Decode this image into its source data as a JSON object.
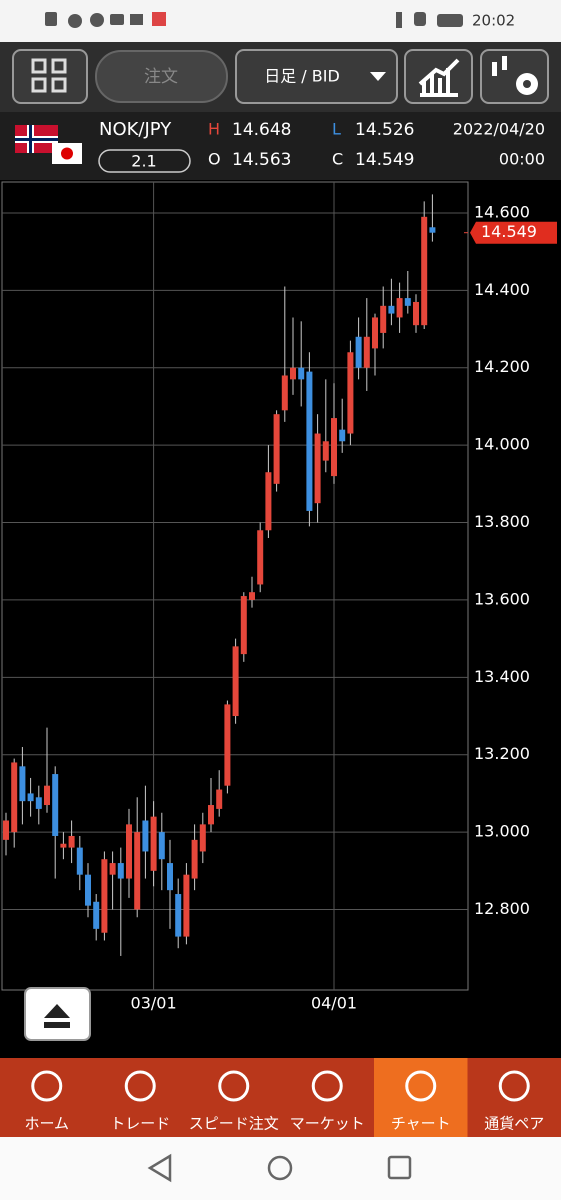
{
  "status_bar": {
    "time": "20:02"
  },
  "toolbar": {
    "order_button": "注文",
    "timeframe": "日足 / BID"
  },
  "quote": {
    "pair": "NOK/JPY",
    "spread": 2.1,
    "high_label": "H",
    "high": 14.648,
    "low_label": "L",
    "low": 14.526,
    "open_label": "O",
    "open": 14.563,
    "close_label": "C",
    "close": 14.549,
    "date": "2022/04/20",
    "time": "00:00"
  },
  "chart_data": {
    "type": "candlestick",
    "up_color": "#e5473b",
    "down_color": "#3d8fe0",
    "grid": true,
    "categories": [
      null,
      null,
      null,
      null,
      null,
      null,
      null,
      null,
      null,
      null,
      null,
      null,
      null,
      null,
      null,
      null,
      null,
      null,
      "03/01",
      null,
      null,
      null,
      null,
      null,
      null,
      null,
      null,
      null,
      null,
      null,
      null,
      null,
      null,
      null,
      null,
      null,
      null,
      null,
      null,
      null,
      "04/01",
      null,
      null,
      null,
      null,
      null,
      null,
      null,
      null,
      null,
      null,
      null,
      null
    ],
    "series": [
      {
        "name": "NOK/JPY",
        "open": [
          12.98,
          13.0,
          13.17,
          13.1,
          13.09,
          13.07,
          13.15,
          12.96,
          12.96,
          12.96,
          12.89,
          12.82,
          12.74,
          12.89,
          12.92,
          12.88,
          12.8,
          13.03,
          12.9,
          13.0,
          12.92,
          12.84,
          12.73,
          12.88,
          12.95,
          13.02,
          13.06,
          13.12,
          13.3,
          13.46,
          13.6,
          13.64,
          13.78,
          13.9,
          14.09,
          14.17,
          14.2,
          14.19,
          13.85,
          13.96,
          13.92,
          14.04,
          14.03,
          14.28,
          14.2,
          14.25,
          14.29,
          14.36,
          14.33,
          14.38,
          14.31,
          14.31,
          14.563
        ],
        "high": [
          13.05,
          13.19,
          13.22,
          13.14,
          13.12,
          13.27,
          13.17,
          13.0,
          13.03,
          12.99,
          12.92,
          12.84,
          12.95,
          12.95,
          12.96,
          13.06,
          13.09,
          13.12,
          13.08,
          13.05,
          12.98,
          12.88,
          12.92,
          13.02,
          13.05,
          13.14,
          13.16,
          13.34,
          13.5,
          13.62,
          13.66,
          13.8,
          14.0,
          14.09,
          14.41,
          14.33,
          14.32,
          14.24,
          14.08,
          14.17,
          14.16,
          14.12,
          14.27,
          14.33,
          14.38,
          14.34,
          14.41,
          14.43,
          14.42,
          14.45,
          14.39,
          14.63,
          14.648
        ],
        "low": [
          12.94,
          12.96,
          13.02,
          13.04,
          13.02,
          13.05,
          12.88,
          12.93,
          12.92,
          12.85,
          12.78,
          12.72,
          12.72,
          12.8,
          12.68,
          12.83,
          12.78,
          12.88,
          12.86,
          12.85,
          12.75,
          12.7,
          12.71,
          12.85,
          12.92,
          13.0,
          13.04,
          13.1,
          13.28,
          13.44,
          13.58,
          13.62,
          13.76,
          13.88,
          14.06,
          14.13,
          14.1,
          13.79,
          13.8,
          13.93,
          13.9,
          13.98,
          14.0,
          14.17,
          14.14,
          14.18,
          14.25,
          14.31,
          14.29,
          14.34,
          14.29,
          14.3,
          14.526
        ],
        "close": [
          13.03,
          13.18,
          13.08,
          13.08,
          13.06,
          13.12,
          12.99,
          12.97,
          12.99,
          12.89,
          12.81,
          12.75,
          12.93,
          12.92,
          12.88,
          13.02,
          13.0,
          12.95,
          13.04,
          12.93,
          12.85,
          12.73,
          12.89,
          12.98,
          13.02,
          13.07,
          13.11,
          13.33,
          13.48,
          13.61,
          13.62,
          13.78,
          13.93,
          14.08,
          14.18,
          14.2,
          14.17,
          13.83,
          14.03,
          14.01,
          14.07,
          14.01,
          14.24,
          14.2,
          14.28,
          14.33,
          14.36,
          14.34,
          14.38,
          14.36,
          14.37,
          14.59,
          14.549
        ]
      }
    ],
    "ylim": [
      12.592,
      14.68
    ],
    "yticks": [
      {
        "value": 12.8,
        "label": "12.800"
      },
      {
        "value": 13.0,
        "label": "13.000"
      },
      {
        "value": 13.2,
        "label": "13.200"
      },
      {
        "value": 13.4,
        "label": "13.400"
      },
      {
        "value": 13.6,
        "label": "13.600"
      },
      {
        "value": 13.8,
        "label": "13.800"
      },
      {
        "value": 14.0,
        "label": "14.000"
      },
      {
        "value": 14.2,
        "label": "14.200"
      },
      {
        "value": 14.4,
        "label": "14.400"
      },
      {
        "value": 14.6,
        "label": "14.600"
      }
    ],
    "last_price": {
      "value": 14.549,
      "label": "14.549"
    }
  },
  "nav": {
    "items": [
      "ホーム",
      "トレード",
      "スピード注文",
      "マーケット",
      "チャート",
      "通貨ペア"
    ],
    "active": 4
  }
}
